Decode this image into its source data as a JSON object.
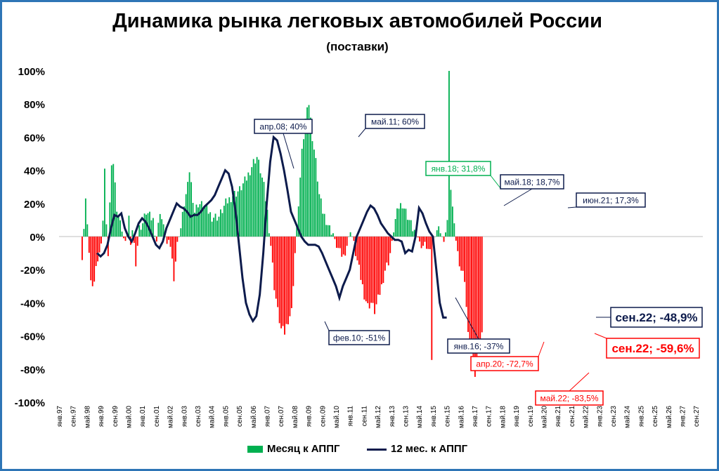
{
  "title": "Динамика рынка легковых автомобилей России",
  "subtitle": "(поставки)",
  "colors": {
    "positive": "#00b050",
    "negative": "#ff0000",
    "line": "#0d1b4c",
    "green_label": "#00b050",
    "red_label": "#ff0000",
    "frame": "#2e75b6"
  },
  "chart_data": {
    "type": "bar+line",
    "ylim": [
      -100,
      100
    ],
    "y_ticks": [
      "100%",
      "80%",
      "60%",
      "40%",
      "20%",
      "0%",
      "-20%",
      "-40%",
      "-60%",
      "-80%",
      "-100%"
    ],
    "x_labels": [
      "янв.97",
      "сен.97",
      "май.98",
      "янв.99",
      "сен.99",
      "май.00",
      "янв.01",
      "сен.01",
      "май.02",
      "янв.03",
      "сен.03",
      "май.04",
      "янв.05",
      "сен.05",
      "май.06",
      "янв.07",
      "сен.07",
      "май.08",
      "янв.09",
      "сен.09",
      "май.10",
      "янв.11",
      "сен.11",
      "май.12",
      "янв.13",
      "сен.13",
      "май.14",
      "янв.15",
      "сен.15",
      "май.16",
      "янв.17",
      "сен.17",
      "май.18",
      "янв.19",
      "сен.19",
      "май.20",
      "янв.21",
      "сен.21",
      "май.22",
      "янв.23",
      "сен.23",
      "май.24",
      "янв.25",
      "сен.25",
      "май.26",
      "янв.27",
      "сен.27"
    ],
    "monthly_anchors": [
      [
        0,
        null
      ],
      [
        12,
        5
      ],
      [
        13,
        -16
      ],
      [
        14,
        7
      ],
      [
        15,
        23
      ],
      [
        16,
        5
      ],
      [
        17,
        -8
      ],
      [
        18,
        -27
      ],
      [
        19,
        -33
      ],
      [
        20,
        -26
      ],
      [
        22,
        -12
      ],
      [
        24,
        -6
      ],
      [
        25,
        12
      ],
      [
        26,
        41
      ],
      [
        27,
        5
      ],
      [
        28,
        -10
      ],
      [
        29,
        20
      ],
      [
        30,
        40
      ],
      [
        31,
        45
      ],
      [
        33,
        18
      ],
      [
        36,
        3
      ],
      [
        38,
        -5
      ],
      [
        40,
        12
      ],
      [
        41,
        -8
      ],
      [
        42,
        5
      ],
      [
        44,
        -15
      ],
      [
        46,
        5
      ],
      [
        48,
        8
      ],
      [
        50,
        15
      ],
      [
        52,
        12
      ],
      [
        54,
        10
      ],
      [
        56,
        -3
      ],
      [
        58,
        16
      ],
      [
        60,
        5
      ],
      [
        62,
        -5
      ],
      [
        64,
        -5
      ],
      [
        66,
        -24
      ],
      [
        68,
        -5
      ],
      [
        70,
        5
      ],
      [
        72,
        20
      ],
      [
        74,
        30
      ],
      [
        75,
        40
      ],
      [
        78,
        15
      ],
      [
        80,
        20
      ],
      [
        84,
        18
      ],
      [
        88,
        12
      ],
      [
        92,
        12
      ],
      [
        96,
        20
      ],
      [
        100,
        25
      ],
      [
        104,
        28
      ],
      [
        108,
        35
      ],
      [
        112,
        45
      ],
      [
        114,
        48
      ],
      [
        116,
        40
      ],
      [
        118,
        30
      ],
      [
        120,
        15
      ],
      [
        122,
        -5
      ],
      [
        124,
        -30
      ],
      [
        126,
        -45
      ],
      [
        128,
        -56
      ],
      [
        130,
        -58
      ],
      [
        132,
        -50
      ],
      [
        134,
        -45
      ],
      [
        136,
        -10
      ],
      [
        138,
        20
      ],
      [
        140,
        50
      ],
      [
        142,
        70
      ],
      [
        143,
        81
      ],
      [
        144,
        80
      ],
      [
        146,
        60
      ],
      [
        148,
        45
      ],
      [
        150,
        25
      ],
      [
        152,
        15
      ],
      [
        154,
        10
      ],
      [
        156,
        5
      ],
      [
        158,
        2
      ],
      [
        160,
        -5
      ],
      [
        162,
        -10
      ],
      [
        164,
        -12
      ],
      [
        166,
        -5
      ],
      [
        168,
        5
      ],
      [
        170,
        -5
      ],
      [
        172,
        -15
      ],
      [
        174,
        -25
      ],
      [
        176,
        -35
      ],
      [
        178,
        -42
      ],
      [
        180,
        -40
      ],
      [
        182,
        -45
      ],
      [
        184,
        -38
      ],
      [
        186,
        -30
      ],
      [
        188,
        -20
      ],
      [
        190,
        -15
      ],
      [
        192,
        -5
      ],
      [
        194,
        10
      ],
      [
        196,
        18
      ],
      [
        198,
        20
      ],
      [
        200,
        15
      ],
      [
        202,
        10
      ],
      [
        204,
        5
      ],
      [
        206,
        2
      ],
      [
        208,
        -3
      ],
      [
        210,
        -5
      ],
      [
        212,
        -5
      ],
      [
        214,
        -10
      ],
      [
        215,
        -72.7
      ],
      [
        216,
        -5
      ],
      [
        218,
        5
      ],
      [
        220,
        5
      ],
      [
        222,
        -5
      ],
      [
        224,
        10
      ],
      [
        225,
        100
      ],
      [
        226,
        30
      ],
      [
        228,
        5
      ],
      [
        230,
        -10
      ],
      [
        232,
        -20
      ],
      [
        234,
        -25
      ],
      [
        236,
        -60
      ],
      [
        238,
        -70
      ],
      [
        240,
        -83.5
      ],
      [
        242,
        -65
      ],
      [
        244,
        -59.6
      ],
      [
        245,
        null
      ],
      [
        372,
        null
      ]
    ],
    "rolling_12m_anchors": [
      [
        22,
        -10
      ],
      [
        24,
        -12
      ],
      [
        26,
        -10
      ],
      [
        28,
        -5
      ],
      [
        30,
        5
      ],
      [
        32,
        13
      ],
      [
        34,
        12
      ],
      [
        36,
        14
      ],
      [
        38,
        5
      ],
      [
        40,
        0
      ],
      [
        42,
        -3
      ],
      [
        44,
        2
      ],
      [
        46,
        8
      ],
      [
        48,
        11
      ],
      [
        50,
        9
      ],
      [
        52,
        5
      ],
      [
        54,
        0
      ],
      [
        56,
        -5
      ],
      [
        58,
        -7
      ],
      [
        60,
        -3
      ],
      [
        62,
        5
      ],
      [
        64,
        10
      ],
      [
        66,
        15
      ],
      [
        68,
        20
      ],
      [
        70,
        18
      ],
      [
        72,
        17
      ],
      [
        74,
        15
      ],
      [
        76,
        12
      ],
      [
        78,
        13
      ],
      [
        80,
        13
      ],
      [
        82,
        15
      ],
      [
        84,
        18
      ],
      [
        86,
        20
      ],
      [
        88,
        22
      ],
      [
        90,
        25
      ],
      [
        92,
        30
      ],
      [
        94,
        35
      ],
      [
        96,
        40
      ],
      [
        98,
        38
      ],
      [
        100,
        30
      ],
      [
        102,
        15
      ],
      [
        104,
        -5
      ],
      [
        106,
        -25
      ],
      [
        108,
        -40
      ],
      [
        110,
        -47
      ],
      [
        112,
        -51
      ],
      [
        114,
        -48
      ],
      [
        116,
        -35
      ],
      [
        118,
        -10
      ],
      [
        120,
        20
      ],
      [
        122,
        45
      ],
      [
        124,
        60
      ],
      [
        126,
        58
      ],
      [
        128,
        50
      ],
      [
        130,
        40
      ],
      [
        132,
        28
      ],
      [
        134,
        15
      ],
      [
        136,
        10
      ],
      [
        138,
        5
      ],
      [
        140,
        0
      ],
      [
        142,
        -3
      ],
      [
        144,
        -5
      ],
      [
        146,
        -5
      ],
      [
        148,
        -5
      ],
      [
        150,
        -6
      ],
      [
        152,
        -10
      ],
      [
        154,
        -15
      ],
      [
        156,
        -20
      ],
      [
        158,
        -25
      ],
      [
        160,
        -30
      ],
      [
        162,
        -37
      ],
      [
        164,
        -30
      ],
      [
        166,
        -25
      ],
      [
        168,
        -20
      ],
      [
        170,
        -10
      ],
      [
        172,
        0
      ],
      [
        174,
        5
      ],
      [
        176,
        10
      ],
      [
        178,
        15
      ],
      [
        180,
        18.7
      ],
      [
        182,
        17
      ],
      [
        184,
        13
      ],
      [
        186,
        8
      ],
      [
        188,
        5
      ],
      [
        190,
        2
      ],
      [
        192,
        0
      ],
      [
        194,
        -2
      ],
      [
        196,
        -2
      ],
      [
        198,
        -3
      ],
      [
        200,
        -10
      ],
      [
        202,
        -8
      ],
      [
        204,
        -9
      ],
      [
        206,
        0
      ],
      [
        208,
        17.3
      ],
      [
        210,
        14
      ],
      [
        212,
        8
      ],
      [
        214,
        3
      ],
      [
        216,
        0
      ],
      [
        218,
        -20
      ],
      [
        220,
        -40
      ],
      [
        222,
        -48.9
      ],
      [
        224,
        -48.9
      ]
    ],
    "annotations": [
      {
        "text": "апр.08; 40%",
        "color": "line"
      },
      {
        "text": "май.11; 60%",
        "color": "line"
      },
      {
        "text": "янв.18; 31,8%",
        "color": "green_label"
      },
      {
        "text": "май.18; 18,7%",
        "color": "line"
      },
      {
        "text": "июн.21; 17,3%",
        "color": "line"
      },
      {
        "text": "фев.10; -51%",
        "color": "line"
      },
      {
        "text": "янв.16; -37%",
        "color": "line"
      },
      {
        "text": "апр.20; -72,7%",
        "color": "red_label"
      },
      {
        "text": "май.22; -83,5%",
        "color": "red_label"
      },
      {
        "text": "сен.22; -48,9%",
        "color": "line"
      },
      {
        "text": "сен.22; -59,6%",
        "color": "red_label"
      }
    ]
  },
  "legend": {
    "monthly": "Месяц к АППГ",
    "rolling": "12 мес. к АППГ"
  }
}
